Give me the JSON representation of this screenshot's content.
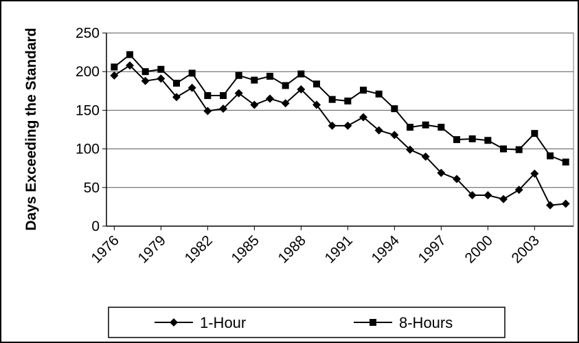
{
  "chart_data": {
    "type": "line",
    "y_label": "Days Exceeding the Standard",
    "x": [
      1976,
      1977,
      1978,
      1979,
      1980,
      1981,
      1982,
      1983,
      1984,
      1985,
      1986,
      1987,
      1988,
      1989,
      1990,
      1991,
      1992,
      1993,
      1994,
      1995,
      1996,
      1997,
      1998,
      1999,
      2000,
      2001,
      2002,
      2003,
      2004,
      2005
    ],
    "series": [
      {
        "name": "1-Hour",
        "color": "#000000",
        "marker": "diamond",
        "values": [
          195,
          208,
          188,
          191,
          167,
          179,
          149,
          152,
          172,
          157,
          165,
          159,
          177,
          157,
          130,
          130,
          141,
          124,
          118,
          99,
          90,
          69,
          61,
          40,
          40,
          35,
          47,
          68,
          27,
          29
        ]
      },
      {
        "name": "8-Hours",
        "color": "#000000",
        "marker": "square",
        "values": [
          206,
          222,
          200,
          203,
          185,
          198,
          169,
          169,
          195,
          189,
          194,
          182,
          197,
          184,
          164,
          162,
          176,
          171,
          152,
          128,
          131,
          128,
          112,
          113,
          111,
          100,
          99,
          120,
          91,
          83
        ]
      }
    ],
    "xlim": [
      1975.5,
      2005.5
    ],
    "xticks": [
      1976,
      1979,
      1982,
      1985,
      1988,
      1991,
      1994,
      1997,
      2000,
      2003
    ],
    "ylim": [
      0,
      250
    ],
    "yticks": [
      0,
      50,
      100,
      150,
      200,
      250
    ],
    "grid": true,
    "legend": "bottom"
  }
}
